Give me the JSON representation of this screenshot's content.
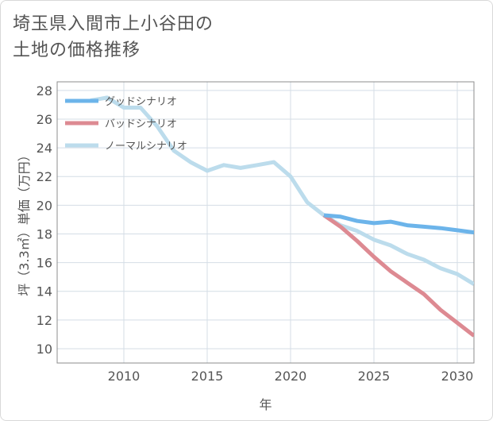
{
  "title_lines": [
    "埼玉県入間市上小谷田の",
    "土地の価格推移"
  ],
  "chart_data": {
    "type": "line",
    "xlabel": "年",
    "ylabel": "坪（3.3㎡）単価（万円）",
    "xlim": [
      2006,
      2031
    ],
    "ylim": [
      9,
      28.6
    ],
    "xticks": [
      2010,
      2015,
      2020,
      2025,
      2030
    ],
    "yticks": [
      10,
      12,
      14,
      16,
      18,
      20,
      22,
      24,
      26,
      28
    ],
    "grid": true,
    "legend_position": "top-left",
    "series": [
      {
        "name": "グッドシナリオ",
        "color": "#6cb4ea",
        "x": [
          2022,
          2023,
          2024,
          2025,
          2026,
          2027,
          2028,
          2029,
          2030,
          2031
        ],
        "y": [
          19.3,
          19.2,
          18.9,
          18.75,
          18.85,
          18.6,
          18.5,
          18.4,
          18.25,
          18.1
        ]
      },
      {
        "name": "バッドシナリオ",
        "color": "#dd8a92",
        "x": [
          2022,
          2023,
          2024,
          2025,
          2026,
          2027,
          2028,
          2029,
          2030,
          2031
        ],
        "y": [
          19.3,
          18.5,
          17.5,
          16.4,
          15.4,
          14.6,
          13.8,
          12.7,
          11.8,
          10.9
        ]
      },
      {
        "name": "ノーマルシナリオ",
        "color": "#bcdcec",
        "x": [
          2008,
          2009,
          2010,
          2011,
          2012,
          2013,
          2014,
          2015,
          2016,
          2017,
          2018,
          2019,
          2020,
          2021,
          2022,
          2023,
          2024,
          2025,
          2026,
          2027,
          2028,
          2029,
          2030,
          2031
        ],
        "y": [
          27.3,
          27.5,
          26.8,
          26.8,
          25.5,
          23.8,
          23.0,
          22.4,
          22.8,
          22.6,
          22.8,
          23.0,
          22.0,
          20.2,
          19.3,
          18.6,
          18.2,
          17.6,
          17.2,
          16.6,
          16.2,
          15.6,
          15.2,
          14.5
        ]
      }
    ]
  }
}
